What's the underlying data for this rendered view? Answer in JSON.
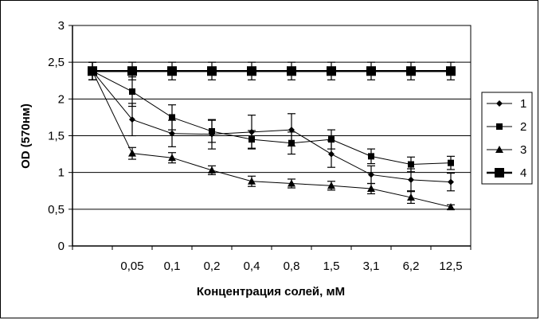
{
  "chart_data": {
    "type": "line",
    "title": "",
    "xlabel": "Концентрация солей, мМ",
    "ylabel": "OD (570нм)",
    "categories": [
      "",
      "0,05",
      "0,1",
      "0,2",
      "0,4",
      "0,8",
      "1,5",
      "3,1",
      "6,2",
      "12,5"
    ],
    "y_ticks": [
      "0",
      "0,5",
      "1",
      "1,5",
      "2",
      "2,5",
      "3"
    ],
    "ylim": [
      0,
      3
    ],
    "grid": "horizontal",
    "legend_position": "right",
    "series": [
      {
        "name": "1",
        "marker": "diamond",
        "values": [
          2.38,
          1.72,
          1.53,
          1.52,
          1.55,
          1.58,
          1.25,
          0.97,
          0.9,
          0.87
        ],
        "errors": [
          0.12,
          0.22,
          0.18,
          0.2,
          0.23,
          0.22,
          0.18,
          0.12,
          0.15,
          0.12
        ]
      },
      {
        "name": "2",
        "marker": "square",
        "values": [
          2.38,
          2.1,
          1.75,
          1.56,
          1.45,
          1.4,
          1.45,
          1.22,
          1.11,
          1.13
        ],
        "errors": [
          0.12,
          0.2,
          0.17,
          0.15,
          0.12,
          0.15,
          0.13,
          0.1,
          0.1,
          0.09
        ]
      },
      {
        "name": "3",
        "marker": "triangle",
        "values": [
          2.38,
          1.26,
          1.2,
          1.03,
          0.88,
          0.85,
          0.82,
          0.78,
          0.66,
          0.53
        ],
        "errors": [
          0.12,
          0.08,
          0.07,
          0.06,
          0.07,
          0.06,
          0.06,
          0.07,
          0.08,
          0.03
        ]
      },
      {
        "name": "4",
        "marker": "big-square",
        "values": [
          2.38,
          2.38,
          2.38,
          2.38,
          2.38,
          2.38,
          2.38,
          2.38,
          2.38,
          2.38
        ],
        "errors": [
          0.12,
          0.12,
          0.12,
          0.12,
          0.12,
          0.12,
          0.12,
          0.12,
          0.12,
          0.12
        ]
      }
    ]
  }
}
